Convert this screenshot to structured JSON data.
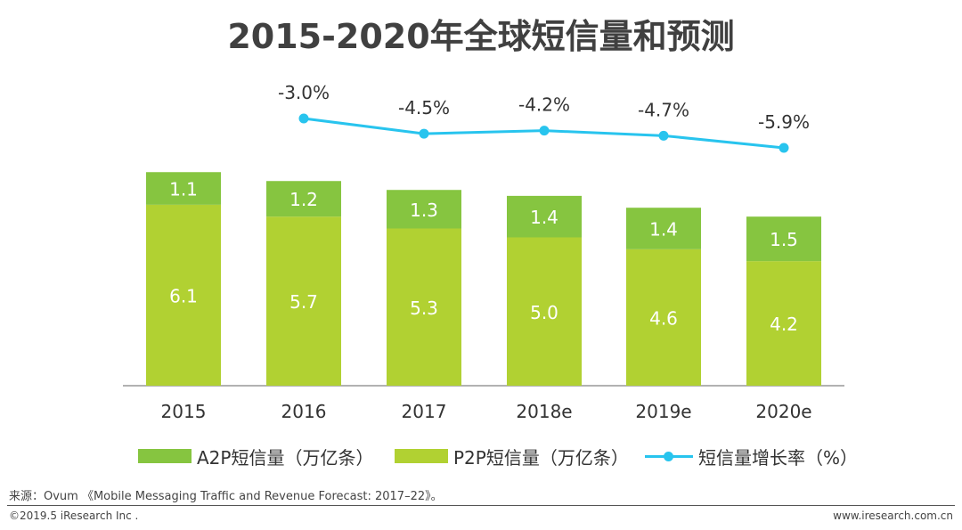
{
  "title": "2015-2020年全球短信量和预测",
  "colors": {
    "a2p": "#86c540",
    "p2p": "#b1d132",
    "growth": "#28c4ee",
    "axis": "#999999",
    "label_on_bar": "#ffffff",
    "text": "#333333"
  },
  "chart_data": {
    "type": "bar",
    "stacked": true,
    "categories": [
      "2015",
      "2016",
      "2017",
      "2018e",
      "2019e",
      "2020e"
    ],
    "series": [
      {
        "name": "P2P短信量（万亿条）",
        "values": [
          6.1,
          5.7,
          5.3,
          5.0,
          4.6,
          4.2
        ]
      },
      {
        "name": "A2P短信量（万亿条）",
        "values": [
          1.1,
          1.2,
          1.3,
          1.4,
          1.4,
          1.5
        ]
      }
    ],
    "bar_labels": {
      "p2p": [
        "6.1",
        "5.7",
        "5.3",
        "5.0",
        "4.6",
        "4.2"
      ],
      "a2p": [
        "1.1",
        "1.2",
        "1.3",
        "1.4",
        "1.4",
        "1.5"
      ]
    },
    "line_series": {
      "name": "短信量增长率（%）",
      "values": [
        null,
        -3.0,
        -4.5,
        -4.2,
        -4.7,
        -5.9
      ],
      "labels": [
        "",
        "-3.0%",
        "-4.5%",
        "-4.2%",
        "-4.7%",
        "-5.9%"
      ]
    },
    "legend_position": "bottom",
    "grid": false
  },
  "legend": {
    "a2p": "A2P短信量（万亿条）",
    "p2p": "P2P短信量（万亿条）",
    "growth": "短信量增长率（%）"
  },
  "source": "来源：Ovum 《Mobile Messaging Traffic and Revenue Forecast: 2017–22》。",
  "copyright": "©2019.5 iResearch Inc .",
  "website": "www.iresearch.com.cn"
}
